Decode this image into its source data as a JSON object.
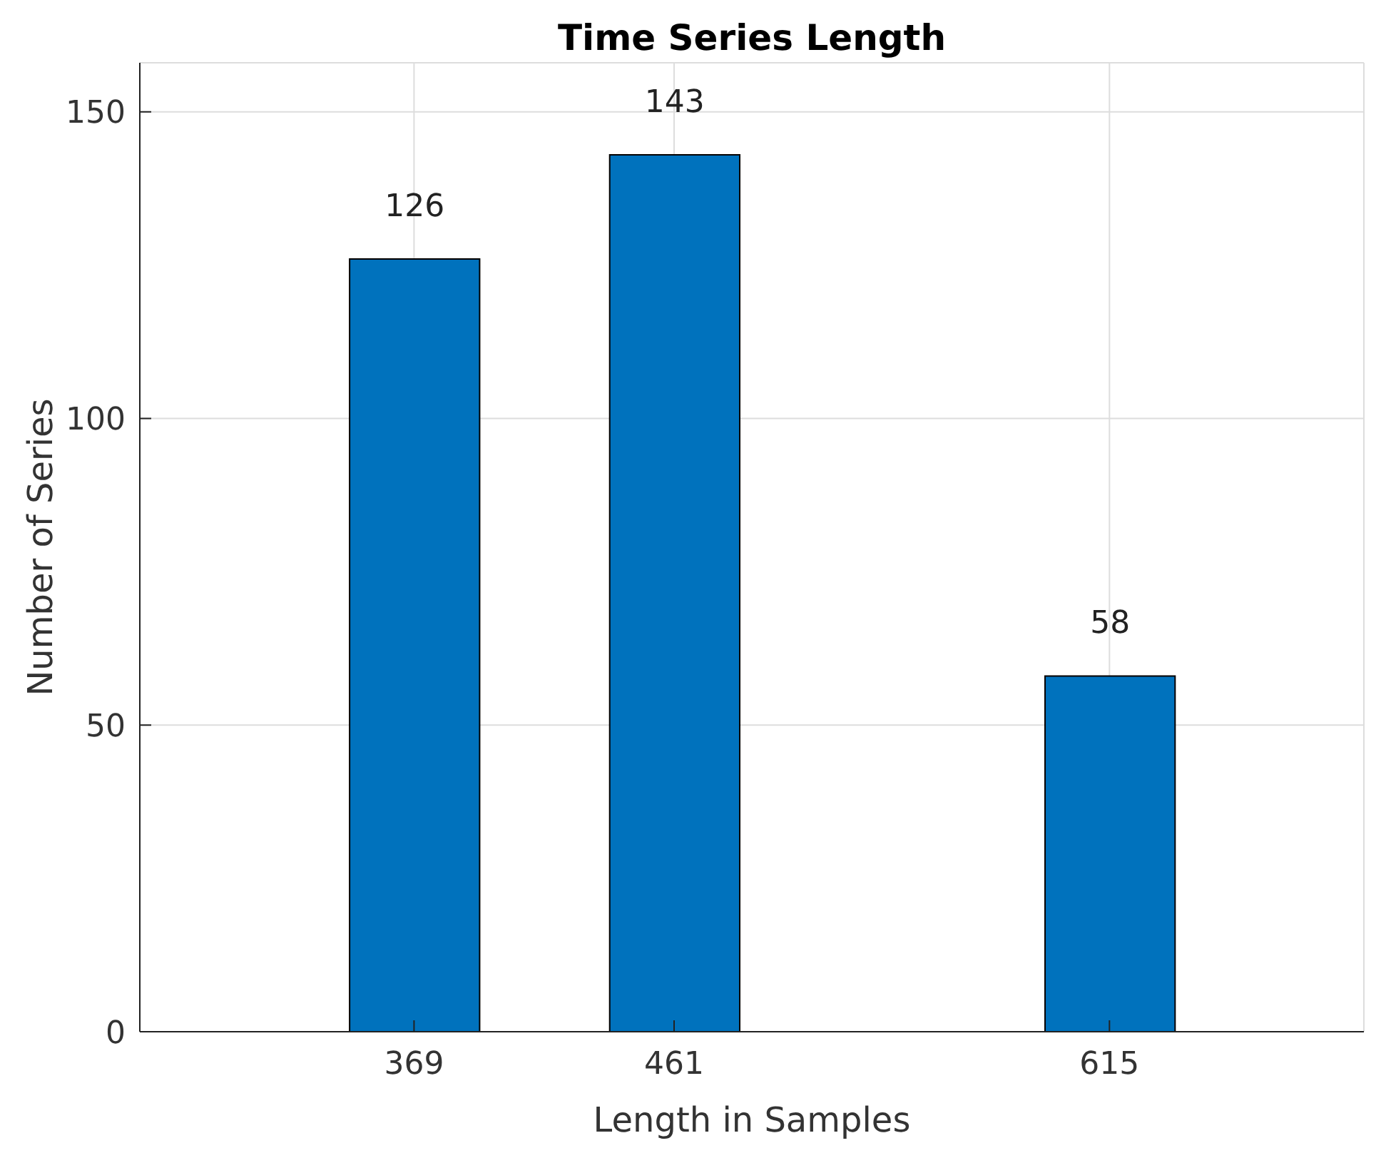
{
  "chart_data": {
    "type": "bar",
    "title": "Time Series Length",
    "xlabel": "Length in Samples",
    "ylabel": "Number of Series",
    "x": [
      369,
      461,
      615
    ],
    "values": [
      126,
      143,
      58
    ],
    "color": "#0072bd",
    "xlim": [
      272,
      705
    ],
    "xticks": [
      369,
      461,
      615
    ],
    "ylim": [
      0,
      158
    ],
    "yticks": [
      0,
      50,
      100,
      150
    ],
    "grid": true,
    "data_labels": true
  }
}
